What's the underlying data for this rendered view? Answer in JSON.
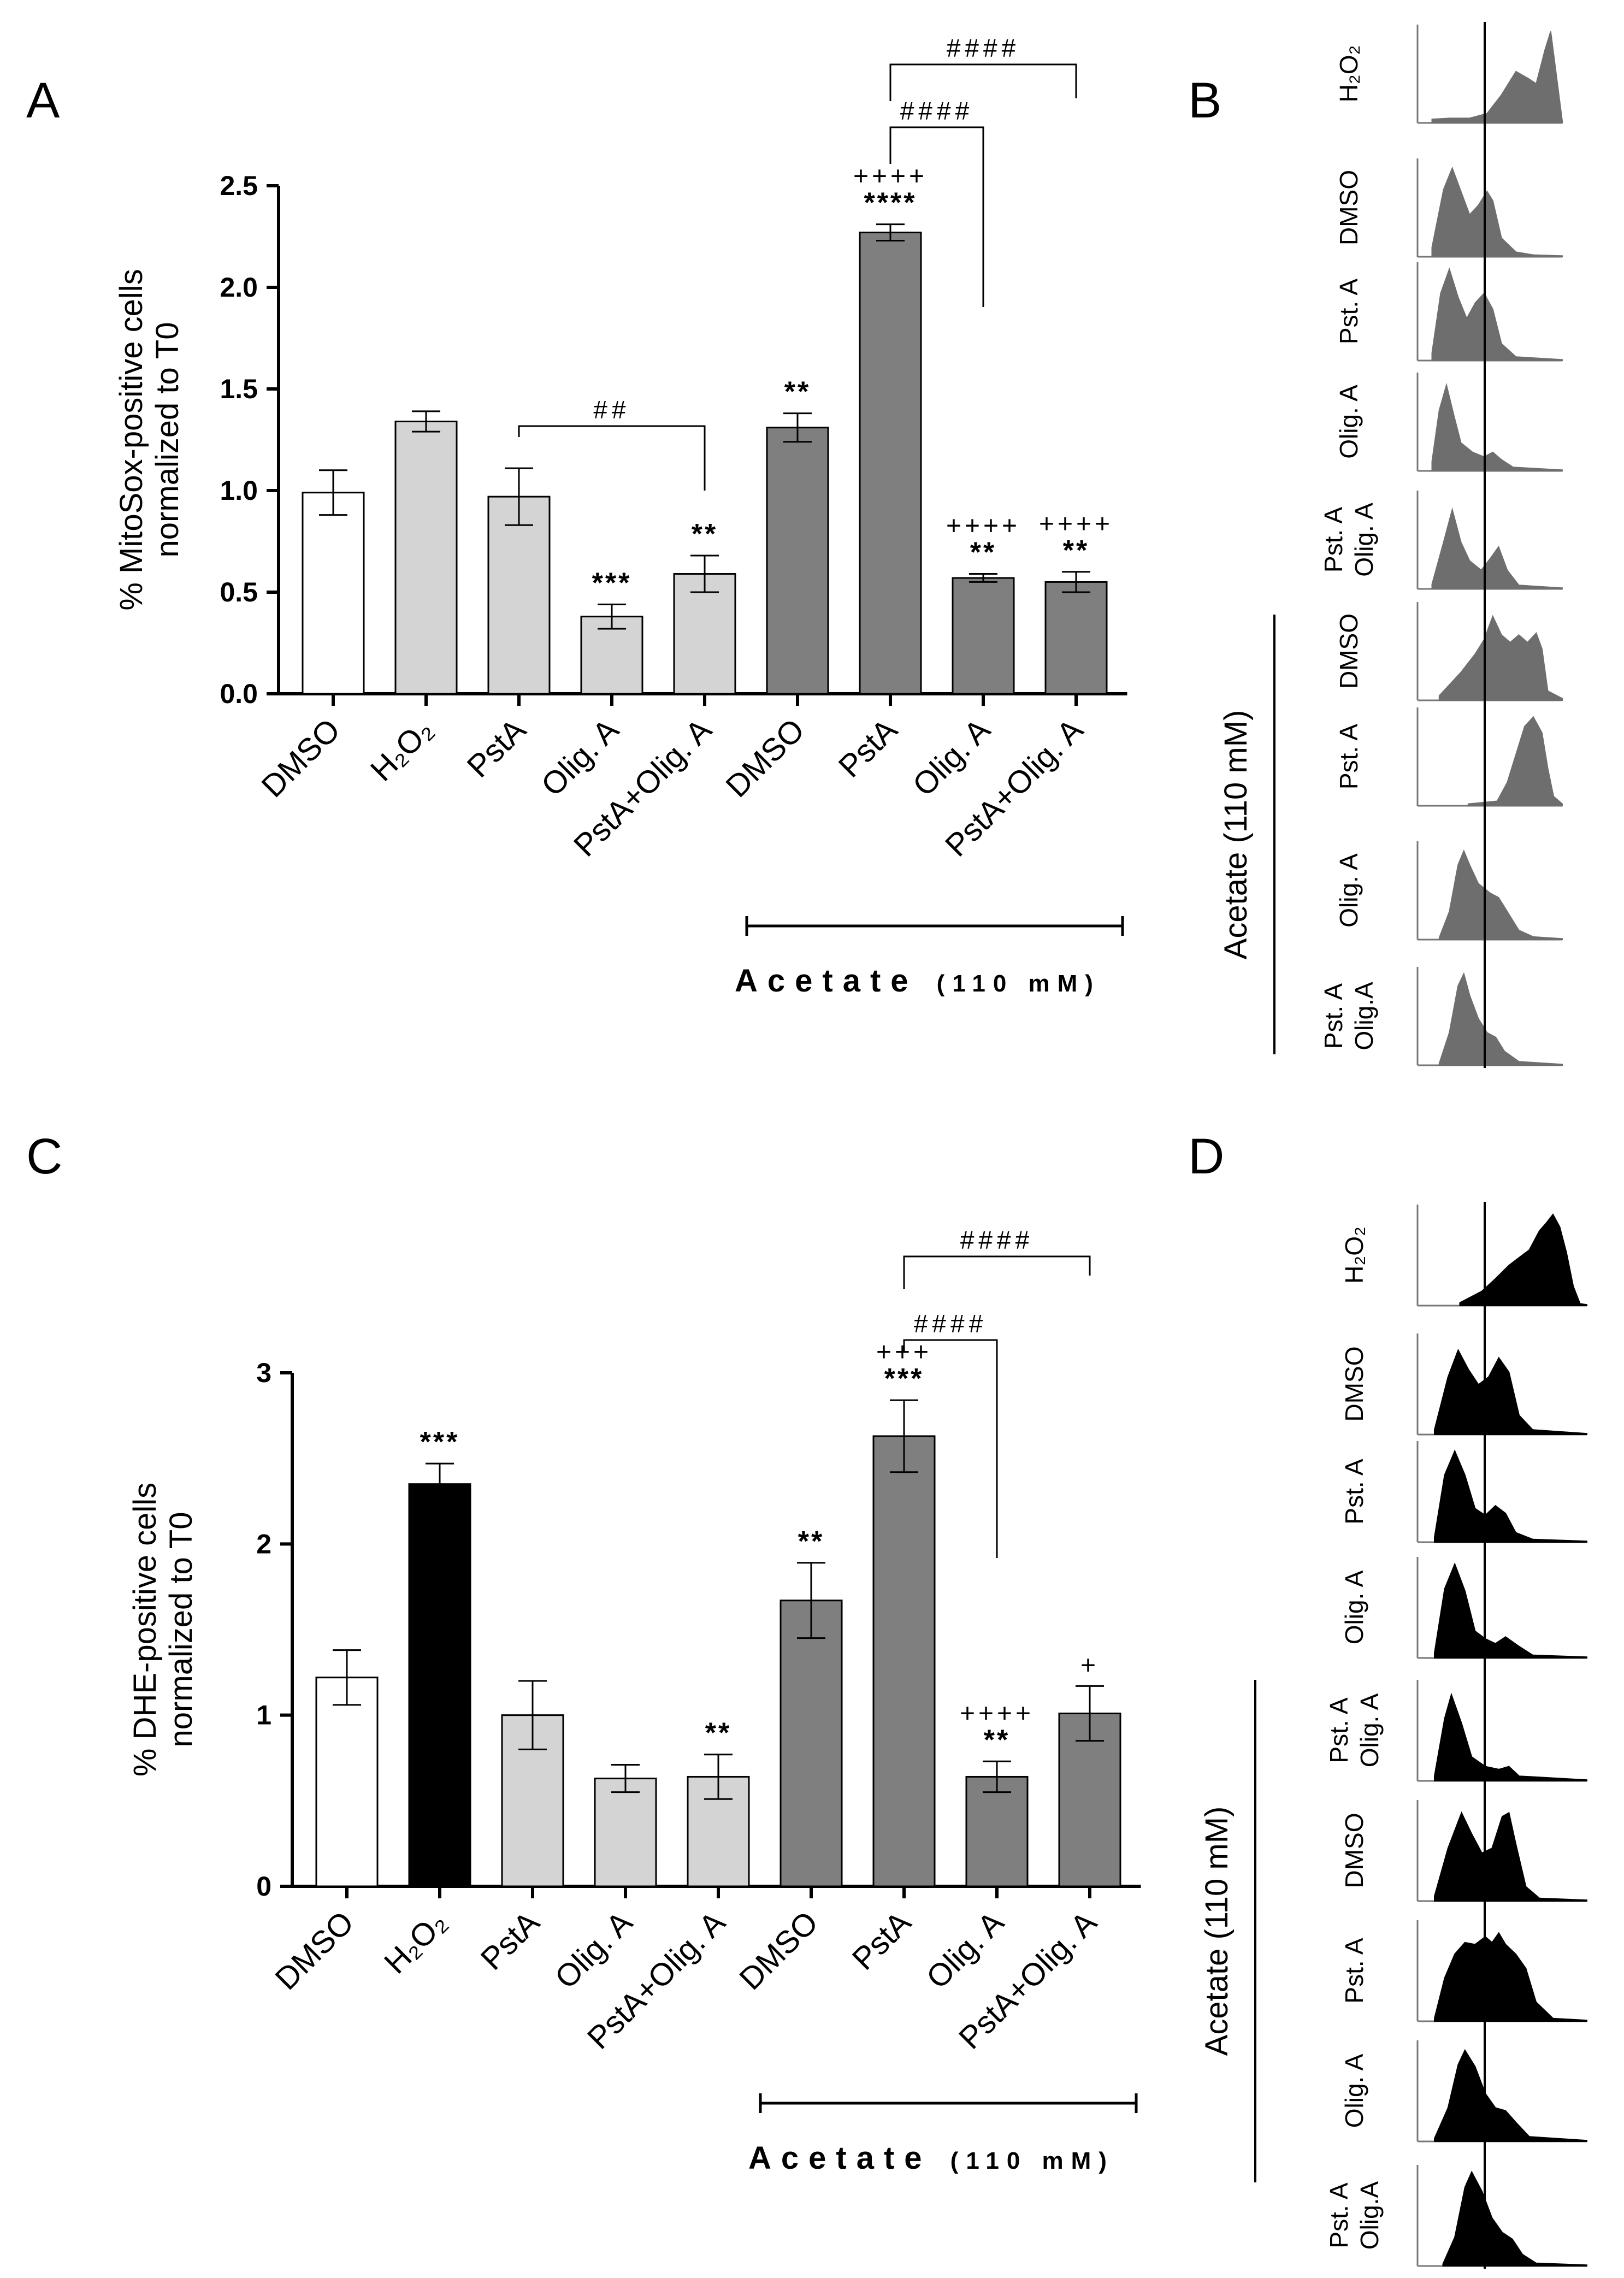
{
  "panels": {
    "A": "A",
    "B": "B",
    "C": "C",
    "D": "D"
  },
  "acetate_bracket": {
    "label": "Acetate",
    "conc": "(110 mM)"
  },
  "histogram_group": "Acetate (110 mM)",
  "histograms": {
    "labels": [
      [
        "H₂O₂"
      ],
      [
        "DMSO"
      ],
      [
        "Pst. A"
      ],
      [
        "Olig. A"
      ],
      [
        "Pst. A",
        "Olig. A"
      ],
      [
        "DMSO"
      ],
      [
        "Pst. A"
      ],
      [
        "Olig. A"
      ],
      [
        "Pst. A",
        "Olig.A"
      ]
    ]
  },
  "colors": {
    "white": "#ffffff",
    "light_gray": "#d4d4d4",
    "dark_gray": "#7f7f7f",
    "black": "#000000",
    "histo_b": "#6e6e6e",
    "histo_d": "#000000"
  },
  "chart_data": [
    {
      "type": "bar",
      "panel": "A",
      "ylabel": [
        "% MitoSox-positive cells",
        "normalized to T0"
      ],
      "ylim": [
        0,
        2.5
      ],
      "yticks": [
        0,
        0.5,
        1,
        1.5,
        2,
        2.5
      ],
      "ytick_labels": [
        "0.0",
        "0.5",
        "1.0",
        "1.5",
        "2.0",
        "2.5"
      ],
      "categories": [
        "DMSO",
        "H₂O₂",
        "PstA",
        "Olig. A",
        "PstA+Olig. A",
        "DMSO",
        "PstA",
        "Olig. A",
        "PstA+Olig. A"
      ],
      "values": [
        0.99,
        1.34,
        0.97,
        0.38,
        0.59,
        1.31,
        2.27,
        0.57,
        0.55
      ],
      "errors": [
        0.11,
        0.05,
        0.14,
        0.06,
        0.09,
        0.07,
        0.04,
        0.02,
        0.05
      ],
      "fills": [
        "white",
        "light_gray",
        "light_gray",
        "light_gray",
        "light_gray",
        "dark_gray",
        "dark_gray",
        "dark_gray",
        "dark_gray"
      ],
      "sig_stars": [
        "",
        "",
        "",
        "***",
        "**",
        "**",
        "****",
        "**",
        "**"
      ],
      "sig_plus": [
        "",
        "",
        "",
        "",
        "",
        "",
        "++++",
        "++++",
        "++++"
      ],
      "brackets": [
        {
          "from": 2,
          "to": 4,
          "label": "##"
        },
        {
          "from": 6,
          "to": 7,
          "label": "####"
        },
        {
          "from": 6,
          "to": 8,
          "label": "####"
        }
      ]
    },
    {
      "type": "bar",
      "panel": "C",
      "ylabel": [
        "% DHE-positive cells",
        "normalized to T0"
      ],
      "ylim": [
        0,
        3
      ],
      "yticks": [
        0,
        1,
        2,
        3
      ],
      "ytick_labels": [
        "0",
        "1",
        "2",
        "3"
      ],
      "categories": [
        "DMSO",
        "H₂O₂",
        "PstA",
        "Olig. A",
        "PstA+Olig. A",
        "DMSO",
        "PstA",
        "Olig. A",
        "PstA+Olig. A"
      ],
      "values": [
        1.22,
        2.35,
        1.0,
        0.63,
        0.64,
        1.67,
        2.63,
        0.64,
        1.01
      ],
      "errors": [
        0.16,
        0.12,
        0.2,
        0.08,
        0.13,
        0.22,
        0.21,
        0.09,
        0.16
      ],
      "fills": [
        "white",
        "black",
        "light_gray",
        "light_gray",
        "light_gray",
        "dark_gray",
        "dark_gray",
        "dark_gray",
        "dark_gray"
      ],
      "sig_stars": [
        "",
        "***",
        "",
        "",
        "**",
        "**",
        "***",
        "**",
        ""
      ],
      "sig_plus": [
        "",
        "",
        "",
        "",
        "",
        "",
        "+++",
        "++++",
        "+"
      ],
      "brackets": [
        {
          "from": 6,
          "to": 7,
          "label": "####"
        },
        {
          "from": 6,
          "to": 8,
          "label": "####"
        }
      ]
    }
  ]
}
